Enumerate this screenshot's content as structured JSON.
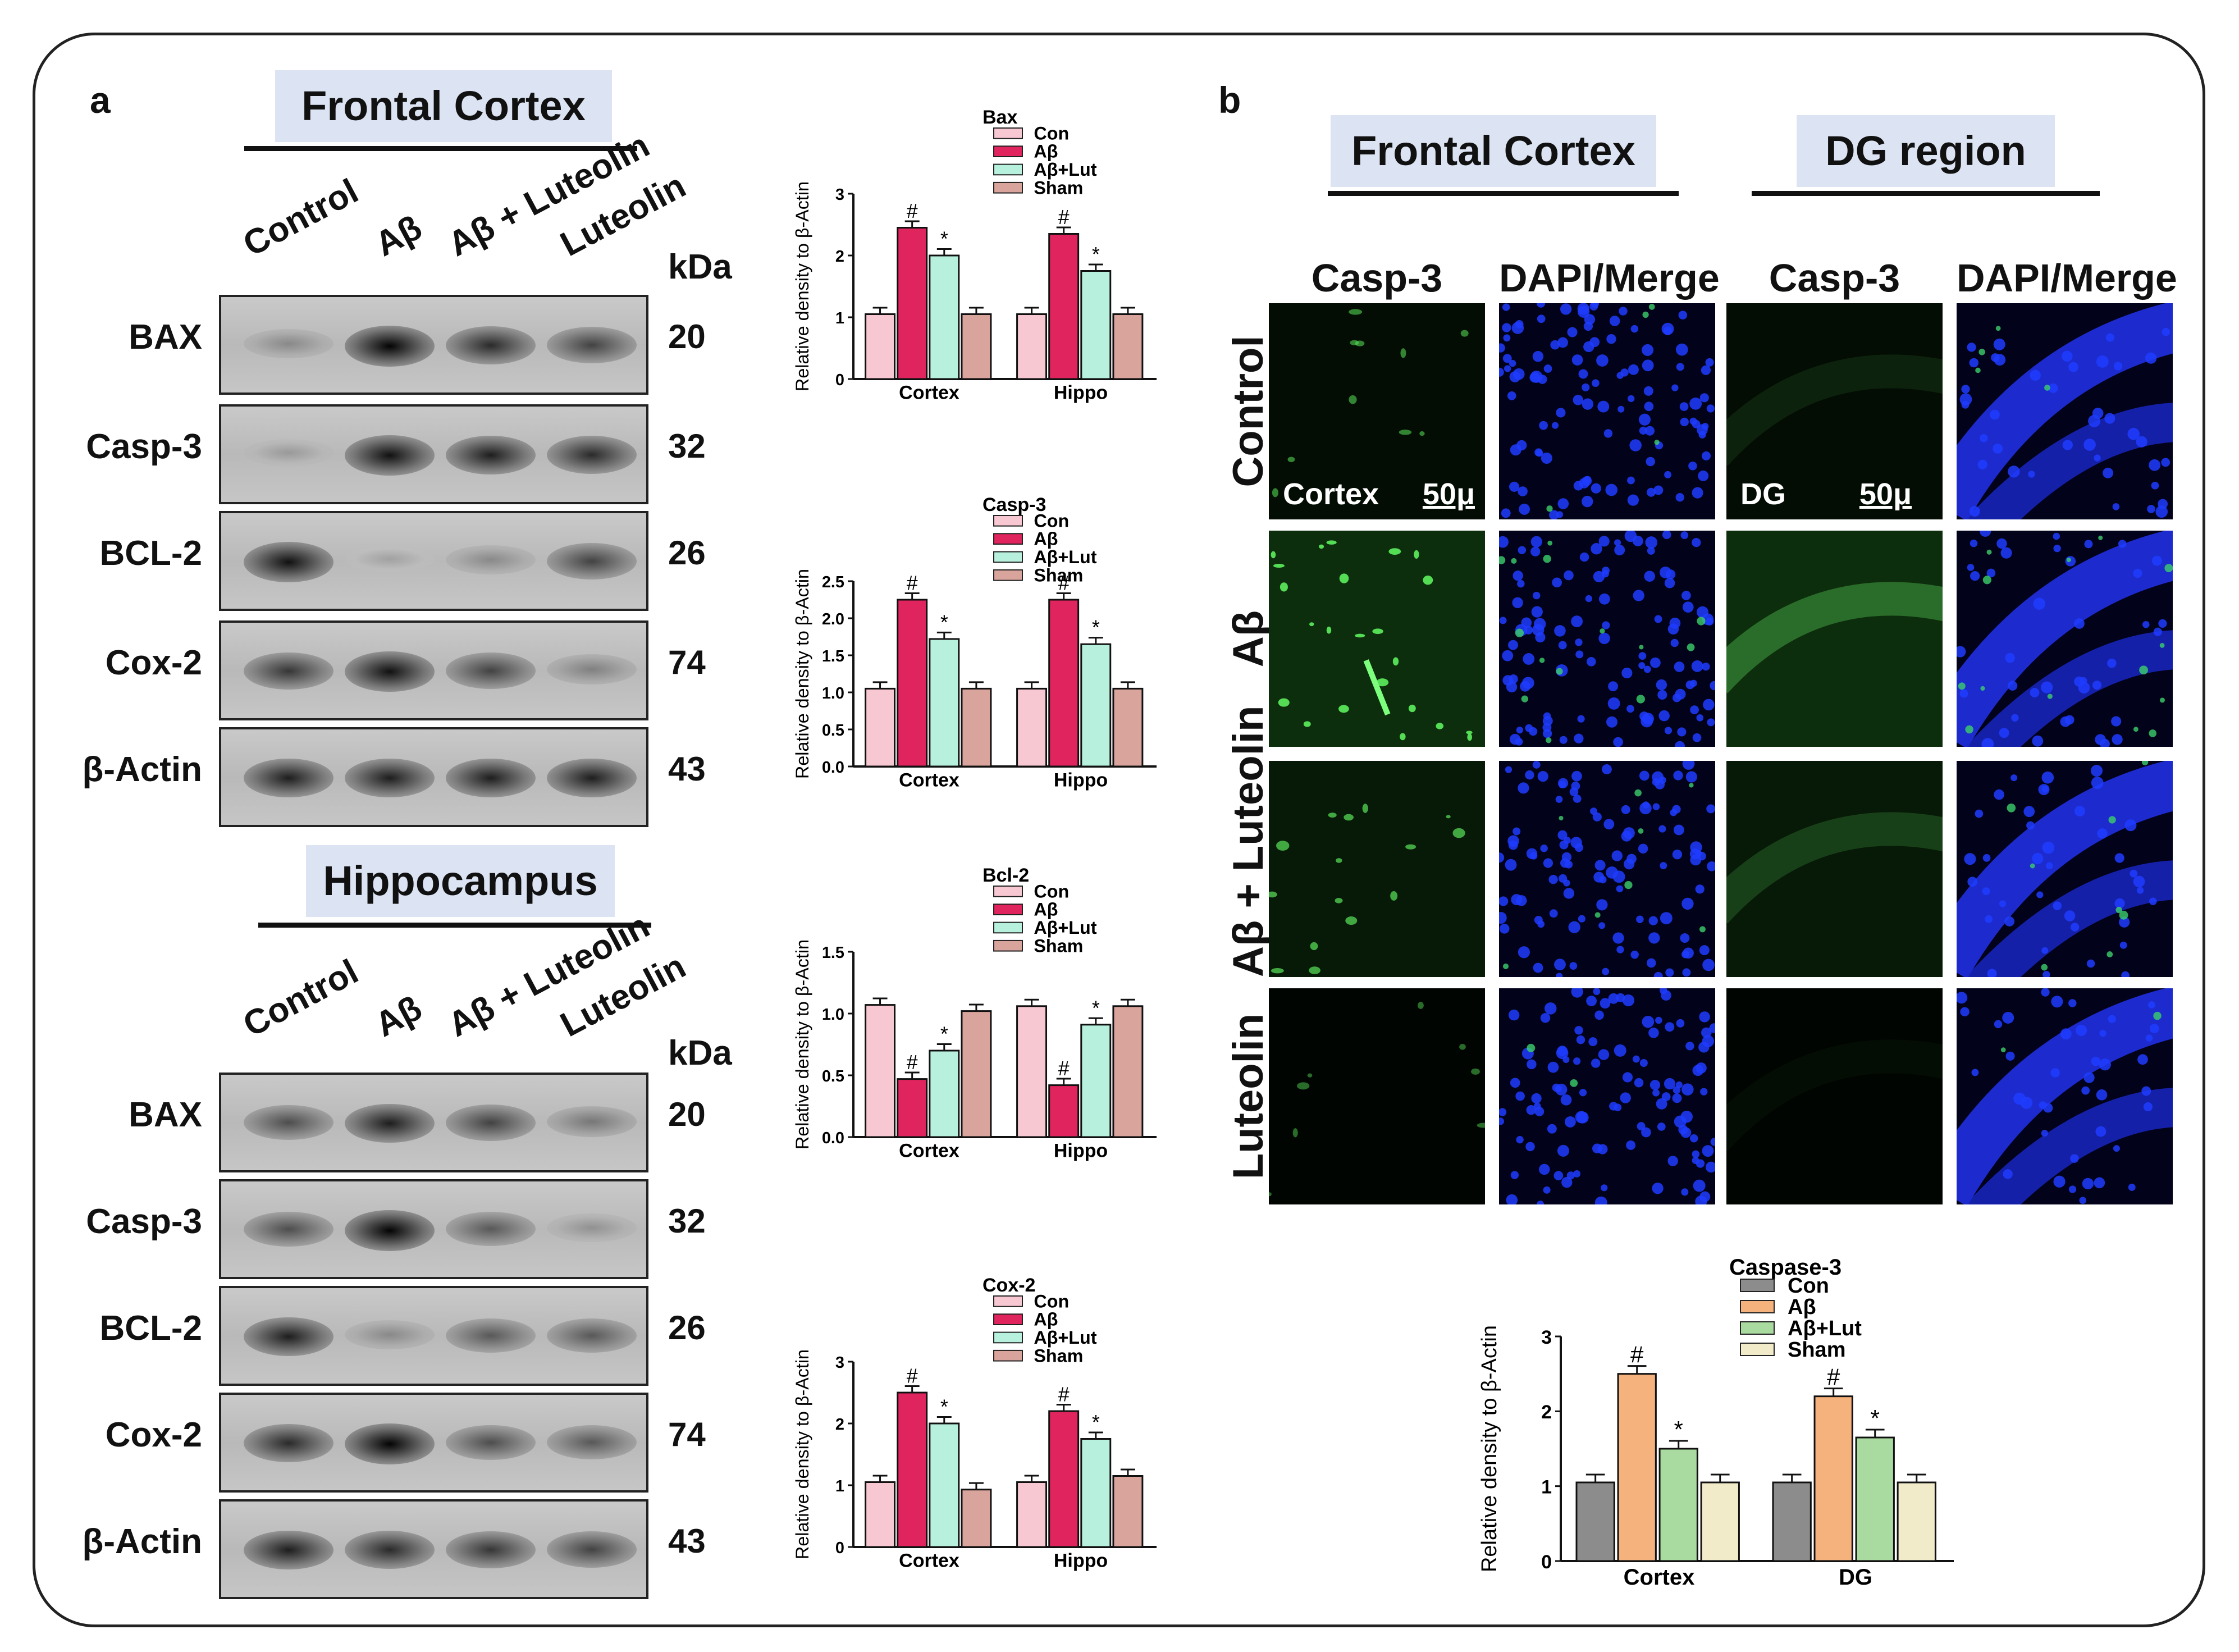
{
  "panel_a": {
    "letter": "a",
    "frontal": {
      "title": "Frontal Cortex",
      "lanes": [
        "Control",
        "Aβ",
        "Aβ + Luteolin",
        "Luteolin"
      ],
      "kda_header": "kDa",
      "rows": [
        {
          "label": "BAX",
          "kda": "20"
        },
        {
          "label": "Casp-3",
          "kda": "32"
        },
        {
          "label": "BCL-2",
          "kda": "26"
        },
        {
          "label": "Cox-2",
          "kda": "74"
        },
        {
          "label": "β-Actin",
          "kda": "43"
        }
      ]
    },
    "hippo": {
      "title": "Hippocampus",
      "lanes": [
        "Control",
        "Aβ",
        "Aβ + Luteolin",
        "Luteolin"
      ],
      "kda_header": "kDa",
      "rows": [
        {
          "label": "BAX",
          "kda": "20"
        },
        {
          "label": "Casp-3",
          "kda": "32"
        },
        {
          "label": "BCL-2",
          "kda": "26"
        },
        {
          "label": "Cox-2",
          "kda": "74"
        },
        {
          "label": "β-Actin",
          "kda": "43"
        }
      ]
    }
  },
  "panel_b": {
    "letter": "b",
    "titles": [
      "Frontal Cortex",
      "DG region"
    ],
    "col_labels": [
      "Casp-3",
      "DAPI/Merge",
      "Casp-3",
      "DAPI/Merge"
    ],
    "row_labels": [
      "Control",
      "Aβ",
      "Aβ + Luteolin",
      "Luteolin"
    ],
    "tile_labels": {
      "cortex": "Cortex",
      "dg": "DG",
      "scale": "50μ"
    }
  },
  "colors": {
    "con": "#f8c8d2",
    "abeta": "#e0245e",
    "ablut": "#b7f0dc",
    "sham": "#d9a49c",
    "g_con": "#8c8c8c",
    "g_abeta": "#f6b27c",
    "g_ablut": "#a9dba0",
    "g_sham": "#f1ebc9"
  },
  "chart_data": [
    {
      "type": "bar",
      "title": "Bax",
      "ylabel": "Relative density to β-Actin",
      "categories": [
        "Cortex",
        "Hippo"
      ],
      "ylim": [
        0,
        3
      ],
      "yticks": [
        0,
        1,
        2,
        3
      ],
      "series": [
        {
          "name": "Con",
          "values": [
            1.05,
            1.05
          ]
        },
        {
          "name": "Aβ",
          "values": [
            2.45,
            2.35
          ]
        },
        {
          "name": "Aβ+Lut",
          "values": [
            2.0,
            1.75
          ]
        },
        {
          "name": "Sham",
          "values": [
            1.05,
            1.05
          ]
        }
      ],
      "annotations": [
        [
          "",
          "#",
          "*",
          ""
        ],
        [
          "",
          "#",
          "*",
          ""
        ]
      ]
    },
    {
      "type": "bar",
      "title": "Casp-3",
      "ylabel": "Relative density to β-Actin",
      "categories": [
        "Cortex",
        "Hippo"
      ],
      "ylim": [
        0,
        2.5
      ],
      "yticks": [
        0.0,
        0.5,
        1.0,
        1.5,
        2.0,
        2.5
      ],
      "series": [
        {
          "name": "Con",
          "values": [
            1.05,
            1.05
          ]
        },
        {
          "name": "Aβ",
          "values": [
            2.25,
            2.25
          ]
        },
        {
          "name": "Aβ+Lut",
          "values": [
            1.72,
            1.65
          ]
        },
        {
          "name": "Sham",
          "values": [
            1.05,
            1.05
          ]
        }
      ],
      "annotations": [
        [
          "",
          "#",
          "*",
          ""
        ],
        [
          "",
          "#",
          "*",
          ""
        ]
      ]
    },
    {
      "type": "bar",
      "title": "Bcl-2",
      "ylabel": "Relative density to β-Actin",
      "categories": [
        "Cortex",
        "Hippo"
      ],
      "ylim": [
        0,
        1.5
      ],
      "yticks": [
        0.0,
        0.5,
        1.0,
        1.5
      ],
      "series": [
        {
          "name": "Con",
          "values": [
            1.07,
            1.06
          ]
        },
        {
          "name": "Aβ",
          "values": [
            0.47,
            0.42
          ]
        },
        {
          "name": "Aβ+Lut",
          "values": [
            0.7,
            0.91
          ]
        },
        {
          "name": "Sham",
          "values": [
            1.02,
            1.06
          ]
        }
      ],
      "annotations": [
        [
          "",
          "#",
          "*",
          ""
        ],
        [
          "",
          "#",
          "*",
          ""
        ]
      ]
    },
    {
      "type": "bar",
      "title": "Cox-2",
      "ylabel": "Relative density to β-Actin",
      "categories": [
        "Cortex",
        "Hippo"
      ],
      "ylim": [
        0,
        3
      ],
      "yticks": [
        0,
        1,
        2,
        3
      ],
      "series": [
        {
          "name": "Con",
          "values": [
            1.05,
            1.05
          ]
        },
        {
          "name": "Aβ",
          "values": [
            2.5,
            2.2
          ]
        },
        {
          "name": "Aβ+Lut",
          "values": [
            2.0,
            1.75
          ]
        },
        {
          "name": "Sham",
          "values": [
            0.93,
            1.15
          ]
        }
      ],
      "annotations": [
        [
          "",
          "#",
          "*",
          ""
        ],
        [
          "",
          "#",
          "*",
          ""
        ]
      ]
    },
    {
      "type": "bar",
      "title": "Caspase-3",
      "ylabel": "Relative density to β-Actin",
      "categories": [
        "Cortex",
        "DG"
      ],
      "ylim": [
        0,
        3
      ],
      "yticks": [
        0,
        1,
        2,
        3
      ],
      "series": [
        {
          "name": "Con",
          "values": [
            1.05,
            1.05
          ]
        },
        {
          "name": "Aβ",
          "values": [
            2.5,
            2.2
          ]
        },
        {
          "name": "Aβ+Lut",
          "values": [
            1.5,
            1.65
          ]
        },
        {
          "name": "Sham",
          "values": [
            1.05,
            1.05
          ]
        }
      ],
      "annotations": [
        [
          "",
          "#",
          "*",
          ""
        ],
        [
          "",
          "#",
          "*",
          ""
        ]
      ]
    }
  ]
}
